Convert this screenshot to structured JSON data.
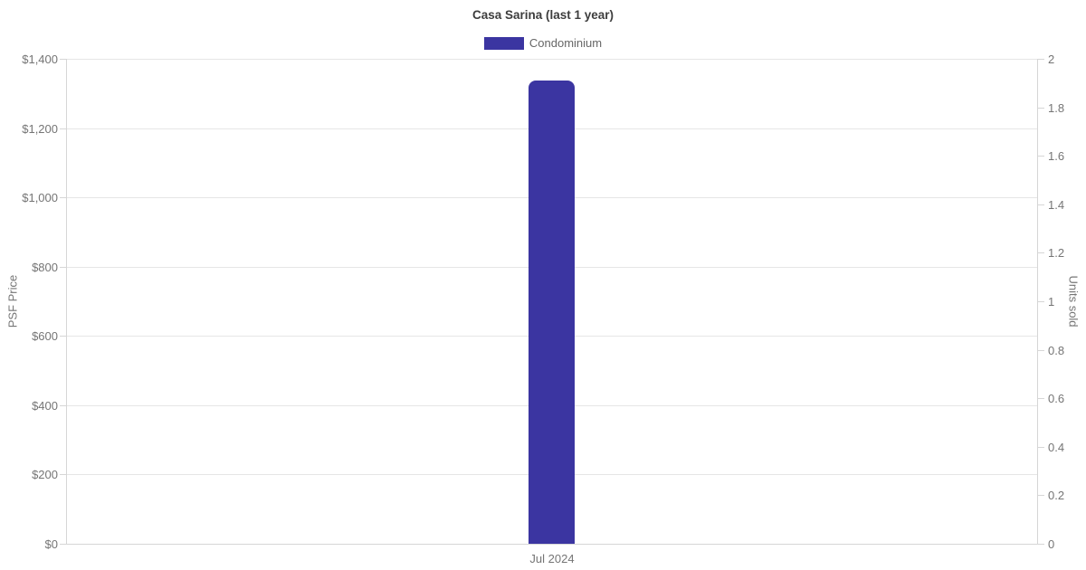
{
  "title": "Casa Sarina (last 1 year)",
  "legend": {
    "items": [
      {
        "label": "Condominium",
        "color": "#3b35a1"
      }
    ]
  },
  "colors": {
    "grid": "#e6e6e6",
    "axis_line": "#d6d6d6",
    "tick_text": "#757575",
    "title_text": "#3d3d3d",
    "bar": "#3b35a1"
  },
  "chart_data": {
    "type": "bar",
    "title": "Casa Sarina (last 1 year)",
    "categories": [
      "Jul 2024"
    ],
    "series": [
      {
        "name": "Condominium",
        "axis": "left",
        "color": "#3b35a1",
        "values": [
          1337
        ]
      }
    ],
    "y_left": {
      "label": "PSF Price",
      "min": 0,
      "max": 1400,
      "tick_step": 200,
      "ticks": [
        "$0",
        "$200",
        "$400",
        "$600",
        "$800",
        "$1,000",
        "$1,200",
        "$1,400"
      ]
    },
    "y_right": {
      "label": "Units sold",
      "min": 0,
      "max": 2,
      "tick_step": 0.2,
      "ticks": [
        "0",
        "0.2",
        "0.4",
        "0.6",
        "0.8",
        "1",
        "1.2",
        "1.4",
        "1.6",
        "1.8",
        "2"
      ]
    },
    "grid": true,
    "legend_position": "top-center",
    "background": "#ffffff"
  }
}
